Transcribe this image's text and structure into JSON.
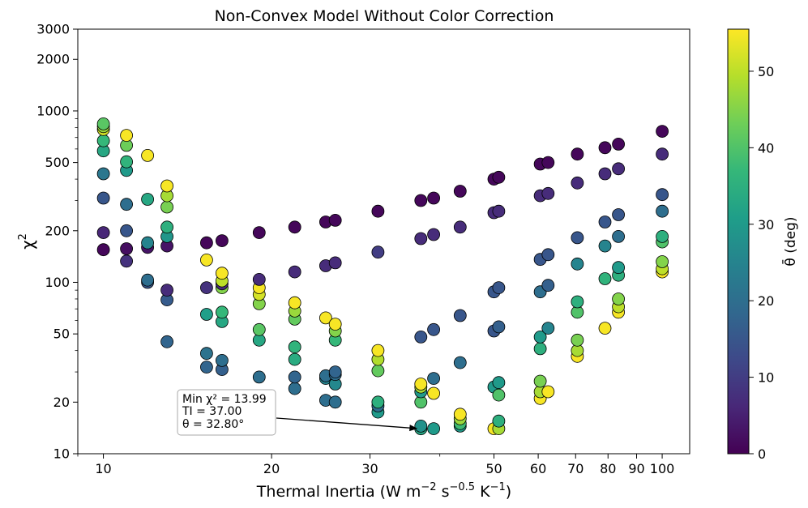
{
  "chart_data": {
    "type": "scatter",
    "title": "Non-Convex Model Without Color Correction",
    "xlabel": "Thermal Inertia (W m",
    "xlabel_parts": [
      "Thermal Inertia (W m",
      "−2",
      " s",
      "−0.5",
      " K",
      "−1",
      ")"
    ],
    "ylabel": "χ",
    "ylabel_sup": "2",
    "xscale": "log",
    "yscale": "log",
    "xlim": [
      9.0,
      112
    ],
    "ylim": [
      10,
      3000
    ],
    "x_ticks": [
      10,
      20,
      30,
      50,
      60,
      70,
      80,
      90,
      100
    ],
    "x_tick_labels": [
      "10",
      "20",
      "30",
      "50",
      "60",
      "70",
      "80",
      "90",
      "100"
    ],
    "y_ticks": [
      10,
      20,
      50,
      100,
      200,
      500,
      1000,
      2000,
      3000
    ],
    "y_tick_labels": [
      "10",
      "20",
      "50",
      "100",
      "200",
      "500",
      "1000",
      "2000",
      "3000"
    ],
    "colorbar": {
      "label": "θ̄ (deg)",
      "min": 0,
      "max": 55.5,
      "ticks": [
        0,
        10,
        20,
        30,
        40,
        50
      ],
      "tick_labels": [
        "0",
        "10",
        "20",
        "30",
        "40",
        "50"
      ],
      "colors": [
        "#440154",
        "#482878",
        "#3e4989",
        "#31688e",
        "#26828e",
        "#1f9e89",
        "#35b779",
        "#6ece58",
        "#b5de2b",
        "#fde725"
      ]
    },
    "annotation": {
      "lines": [
        "Min χ² = 13.99",
        "TI = 37.00",
        "θ = 32.80°"
      ],
      "target": {
        "x": 37.0,
        "y": 13.99
      }
    },
    "points": [
      {
        "x": 10.0,
        "y": 155,
        "t": 1
      },
      {
        "x": 10.0,
        "y": 195,
        "t": 6
      },
      {
        "x": 10.0,
        "y": 310,
        "t": 15
      },
      {
        "x": 10.0,
        "y": 430,
        "t": 22
      },
      {
        "x": 10.0,
        "y": 585,
        "t": 33
      },
      {
        "x": 10.0,
        "y": 670,
        "t": 37
      },
      {
        "x": 10.0,
        "y": 780,
        "t": 52
      },
      {
        "x": 10.0,
        "y": 810,
        "t": 47
      },
      {
        "x": 10.0,
        "y": 840,
        "t": 41
      },
      {
        "x": 11.0,
        "y": 133,
        "t": 8
      },
      {
        "x": 11.0,
        "y": 157,
        "t": 2
      },
      {
        "x": 11.0,
        "y": 200,
        "t": 15
      },
      {
        "x": 11.0,
        "y": 285,
        "t": 20
      },
      {
        "x": 11.0,
        "y": 450,
        "t": 30
      },
      {
        "x": 11.0,
        "y": 505,
        "t": 36
      },
      {
        "x": 11.0,
        "y": 630,
        "t": 43
      },
      {
        "x": 11.0,
        "y": 720,
        "t": 55
      },
      {
        "x": 12.0,
        "y": 100,
        "t": 15
      },
      {
        "x": 12.0,
        "y": 103,
        "t": 20
      },
      {
        "x": 12.0,
        "y": 160,
        "t": 3
      },
      {
        "x": 12.0,
        "y": 170,
        "t": 25
      },
      {
        "x": 12.0,
        "y": 305,
        "t": 33
      },
      {
        "x": 12.0,
        "y": 550,
        "t": 55
      },
      {
        "x": 13.0,
        "y": 45,
        "t": 18
      },
      {
        "x": 13.0,
        "y": 79,
        "t": 16
      },
      {
        "x": 13.0,
        "y": 90,
        "t": 7
      },
      {
        "x": 13.0,
        "y": 163,
        "t": 3
      },
      {
        "x": 13.0,
        "y": 185,
        "t": 29
      },
      {
        "x": 13.0,
        "y": 210,
        "t": 35
      },
      {
        "x": 13.0,
        "y": 275,
        "t": 44
      },
      {
        "x": 13.0,
        "y": 320,
        "t": 48
      },
      {
        "x": 13.0,
        "y": 365,
        "t": 55
      },
      {
        "x": 15.3,
        "y": 32,
        "t": 18
      },
      {
        "x": 15.3,
        "y": 38.5,
        "t": 21
      },
      {
        "x": 15.3,
        "y": 65,
        "t": 31
      },
      {
        "x": 15.3,
        "y": 93,
        "t": 8
      },
      {
        "x": 15.3,
        "y": 135,
        "t": 55
      },
      {
        "x": 15.3,
        "y": 170,
        "t": 1
      },
      {
        "x": 16.3,
        "y": 31,
        "t": 17
      },
      {
        "x": 16.3,
        "y": 35,
        "t": 20
      },
      {
        "x": 16.3,
        "y": 59,
        "t": 33
      },
      {
        "x": 16.3,
        "y": 67,
        "t": 37
      },
      {
        "x": 16.3,
        "y": 93,
        "t": 45
      },
      {
        "x": 16.3,
        "y": 98,
        "t": 7
      },
      {
        "x": 16.3,
        "y": 102,
        "t": 50
      },
      {
        "x": 16.3,
        "y": 113,
        "t": 55
      },
      {
        "x": 16.3,
        "y": 175,
        "t": 1
      },
      {
        "x": 19.0,
        "y": 28,
        "t": 20
      },
      {
        "x": 19.0,
        "y": 46,
        "t": 33
      },
      {
        "x": 19.0,
        "y": 53,
        "t": 41
      },
      {
        "x": 19.0,
        "y": 75,
        "t": 45
      },
      {
        "x": 19.0,
        "y": 85,
        "t": 52
      },
      {
        "x": 19.0,
        "y": 93,
        "t": 55
      },
      {
        "x": 19.0,
        "y": 104,
        "t": 7
      },
      {
        "x": 19.0,
        "y": 195,
        "t": 1
      },
      {
        "x": 22.0,
        "y": 24,
        "t": 20
      },
      {
        "x": 22.0,
        "y": 28,
        "t": 18
      },
      {
        "x": 22.0,
        "y": 35.5,
        "t": 34
      },
      {
        "x": 22.0,
        "y": 42,
        "t": 36
      },
      {
        "x": 22.0,
        "y": 61,
        "t": 42
      },
      {
        "x": 22.0,
        "y": 68,
        "t": 47
      },
      {
        "x": 22.0,
        "y": 76,
        "t": 55
      },
      {
        "x": 22.0,
        "y": 115,
        "t": 7
      },
      {
        "x": 22.0,
        "y": 210,
        "t": 1
      },
      {
        "x": 25.0,
        "y": 20.5,
        "t": 20
      },
      {
        "x": 25.0,
        "y": 27.5,
        "t": 25
      },
      {
        "x": 25.0,
        "y": 28.5,
        "t": 20
      },
      {
        "x": 25.0,
        "y": 62,
        "t": 55
      },
      {
        "x": 25.0,
        "y": 125,
        "t": 7
      },
      {
        "x": 25.0,
        "y": 225,
        "t": 1
      },
      {
        "x": 26.0,
        "y": 20,
        "t": 20
      },
      {
        "x": 26.0,
        "y": 25.5,
        "t": 26
      },
      {
        "x": 26.0,
        "y": 29,
        "t": 20
      },
      {
        "x": 26.0,
        "y": 30,
        "t": 18
      },
      {
        "x": 26.0,
        "y": 46,
        "t": 37
      },
      {
        "x": 26.0,
        "y": 52,
        "t": 45
      },
      {
        "x": 26.0,
        "y": 57,
        "t": 55
      },
      {
        "x": 26.0,
        "y": 130,
        "t": 7
      },
      {
        "x": 26.0,
        "y": 230,
        "t": 1
      },
      {
        "x": 31.0,
        "y": 17.5,
        "t": 30
      },
      {
        "x": 31.0,
        "y": 19,
        "t": 20
      },
      {
        "x": 31.0,
        "y": 20,
        "t": 35
      },
      {
        "x": 31.0,
        "y": 30.5,
        "t": 42
      },
      {
        "x": 31.0,
        "y": 35.5,
        "t": 49
      },
      {
        "x": 31.0,
        "y": 40,
        "t": 55
      },
      {
        "x": 31.0,
        "y": 150,
        "t": 10
      },
      {
        "x": 31.0,
        "y": 260,
        "t": 1
      },
      {
        "x": 37.0,
        "y": 13.99,
        "t": 32.8
      },
      {
        "x": 37.0,
        "y": 14.5,
        "t": 28
      },
      {
        "x": 37.0,
        "y": 20,
        "t": 40
      },
      {
        "x": 37.0,
        "y": 23,
        "t": 30
      },
      {
        "x": 37.0,
        "y": 24.5,
        "t": 48
      },
      {
        "x": 37.0,
        "y": 25.5,
        "t": 55
      },
      {
        "x": 37.0,
        "y": 48,
        "t": 15
      },
      {
        "x": 37.0,
        "y": 180,
        "t": 7
      },
      {
        "x": 37.0,
        "y": 300,
        "t": 1
      },
      {
        "x": 39.0,
        "y": 14,
        "t": 30
      },
      {
        "x": 39.0,
        "y": 22.5,
        "t": 55
      },
      {
        "x": 39.0,
        "y": 27.5,
        "t": 20
      },
      {
        "x": 39.0,
        "y": 53,
        "t": 15
      },
      {
        "x": 39.0,
        "y": 190,
        "t": 7
      },
      {
        "x": 39.0,
        "y": 310,
        "t": 1
      },
      {
        "x": 43.5,
        "y": 14.5,
        "t": 30
      },
      {
        "x": 43.5,
        "y": 15,
        "t": 38
      },
      {
        "x": 43.5,
        "y": 16,
        "t": 47
      },
      {
        "x": 43.5,
        "y": 17,
        "t": 55
      },
      {
        "x": 43.5,
        "y": 34,
        "t": 20
      },
      {
        "x": 43.5,
        "y": 64,
        "t": 15
      },
      {
        "x": 43.5,
        "y": 210,
        "t": 7
      },
      {
        "x": 43.5,
        "y": 340,
        "t": 1
      },
      {
        "x": 50.0,
        "y": 14,
        "t": 55
      },
      {
        "x": 50.0,
        "y": 24.5,
        "t": 30
      },
      {
        "x": 50.0,
        "y": 52,
        "t": 15
      },
      {
        "x": 50.0,
        "y": 88,
        "t": 15
      },
      {
        "x": 50.0,
        "y": 255,
        "t": 7
      },
      {
        "x": 50.0,
        "y": 400,
        "t": 1
      },
      {
        "x": 51.0,
        "y": 14,
        "t": 48
      },
      {
        "x": 51.0,
        "y": 15.5,
        "t": 35
      },
      {
        "x": 51.0,
        "y": 22,
        "t": 40
      },
      {
        "x": 51.0,
        "y": 26,
        "t": 30
      },
      {
        "x": 51.0,
        "y": 55,
        "t": 17
      },
      {
        "x": 51.0,
        "y": 93,
        "t": 15
      },
      {
        "x": 51.0,
        "y": 260,
        "t": 7
      },
      {
        "x": 51.0,
        "y": 410,
        "t": 1
      },
      {
        "x": 60.5,
        "y": 21,
        "t": 55
      },
      {
        "x": 60.5,
        "y": 23,
        "t": 48
      },
      {
        "x": 60.5,
        "y": 26.5,
        "t": 44
      },
      {
        "x": 60.5,
        "y": 41,
        "t": 35
      },
      {
        "x": 60.5,
        "y": 48,
        "t": 30
      },
      {
        "x": 60.5,
        "y": 88,
        "t": 20
      },
      {
        "x": 60.5,
        "y": 136,
        "t": 15
      },
      {
        "x": 60.5,
        "y": 320,
        "t": 7
      },
      {
        "x": 60.5,
        "y": 490,
        "t": 1
      },
      {
        "x": 62.5,
        "y": 23,
        "t": 55
      },
      {
        "x": 62.5,
        "y": 54,
        "t": 25
      },
      {
        "x": 62.5,
        "y": 96,
        "t": 17
      },
      {
        "x": 62.5,
        "y": 145,
        "t": 15
      },
      {
        "x": 62.5,
        "y": 330,
        "t": 7
      },
      {
        "x": 62.5,
        "y": 500,
        "t": 1
      },
      {
        "x": 70.5,
        "y": 37,
        "t": 55
      },
      {
        "x": 70.5,
        "y": 40,
        "t": 48
      },
      {
        "x": 70.5,
        "y": 46,
        "t": 44
      },
      {
        "x": 70.5,
        "y": 67,
        "t": 40
      },
      {
        "x": 70.5,
        "y": 77,
        "t": 35
      },
      {
        "x": 70.5,
        "y": 128,
        "t": 25
      },
      {
        "x": 70.5,
        "y": 182,
        "t": 15
      },
      {
        "x": 70.5,
        "y": 380,
        "t": 7
      },
      {
        "x": 70.5,
        "y": 560,
        "t": 1
      },
      {
        "x": 79.0,
        "y": 54,
        "t": 55
      },
      {
        "x": 79.0,
        "y": 105,
        "t": 36
      },
      {
        "x": 79.0,
        "y": 163,
        "t": 25
      },
      {
        "x": 79.0,
        "y": 225,
        "t": 15
      },
      {
        "x": 79.0,
        "y": 430,
        "t": 7
      },
      {
        "x": 79.0,
        "y": 610,
        "t": 1
      },
      {
        "x": 83.5,
        "y": 67,
        "t": 55
      },
      {
        "x": 83.5,
        "y": 72,
        "t": 50
      },
      {
        "x": 83.5,
        "y": 80,
        "t": 45
      },
      {
        "x": 83.5,
        "y": 110,
        "t": 35
      },
      {
        "x": 83.5,
        "y": 122,
        "t": 30
      },
      {
        "x": 83.5,
        "y": 185,
        "t": 20
      },
      {
        "x": 83.5,
        "y": 248,
        "t": 15
      },
      {
        "x": 83.5,
        "y": 460,
        "t": 7
      },
      {
        "x": 83.5,
        "y": 640,
        "t": 1
      },
      {
        "x": 100.0,
        "y": 115,
        "t": 55
      },
      {
        "x": 100.0,
        "y": 120,
        "t": 50
      },
      {
        "x": 100.0,
        "y": 132,
        "t": 45
      },
      {
        "x": 100.0,
        "y": 172,
        "t": 40
      },
      {
        "x": 100.0,
        "y": 185,
        "t": 35
      },
      {
        "x": 100.0,
        "y": 260,
        "t": 20
      },
      {
        "x": 100.0,
        "y": 325,
        "t": 15
      },
      {
        "x": 100.0,
        "y": 560,
        "t": 7
      },
      {
        "x": 100.0,
        "y": 760,
        "t": 1
      }
    ]
  }
}
